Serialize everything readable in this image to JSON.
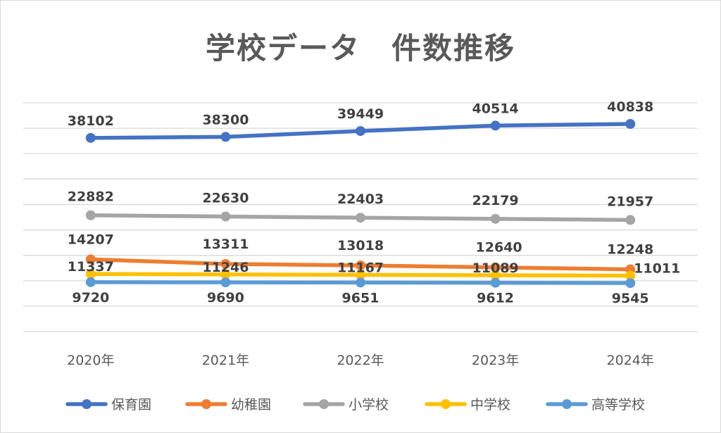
{
  "chart_data": {
    "type": "line",
    "title": "学校データ　件数推移",
    "categories": [
      "2020年",
      "2021年",
      "2022年",
      "2023年",
      "2024年"
    ],
    "xlabel": "",
    "ylabel": "",
    "ylim": [
      0,
      45000
    ],
    "grid": true,
    "legend": "bottom",
    "series": [
      {
        "name": "保育園",
        "color": "#4472C4",
        "values": [
          38102,
          38300,
          39449,
          40514,
          40838
        ]
      },
      {
        "name": "幼稚園",
        "color": "#ED7D31",
        "values": [
          14207,
          13311,
          13018,
          12640,
          12248
        ]
      },
      {
        "name": "小学校",
        "color": "#A5A5A5",
        "values": [
          22882,
          22630,
          22403,
          22179,
          21957
        ]
      },
      {
        "name": "中学校",
        "color": "#FFC000",
        "values": [
          11337,
          11246,
          11167,
          11089,
          11011
        ]
      },
      {
        "name": "高等学校",
        "color": "#5B9BD5",
        "values": [
          9720,
          9690,
          9651,
          9612,
          9545
        ]
      }
    ]
  }
}
